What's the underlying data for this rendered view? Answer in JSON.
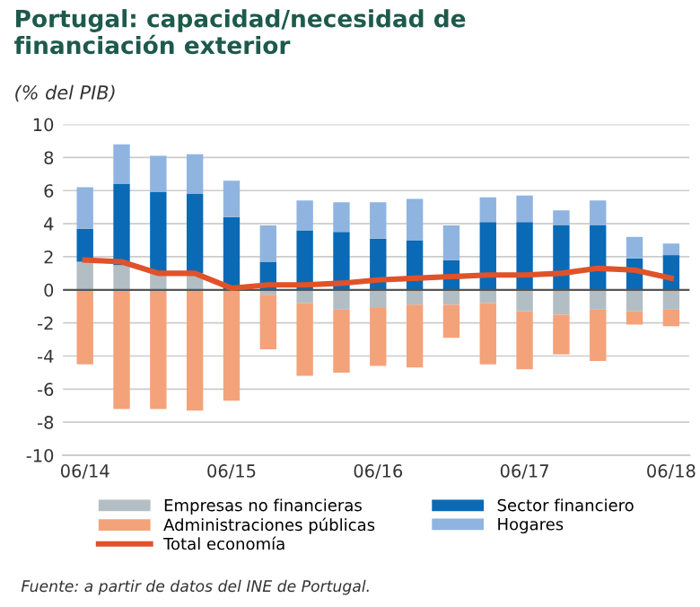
{
  "chart_data": {
    "type": "bar",
    "stacked": true,
    "title": "Portugal: capacidad/necesidad de\nfinanciación exterior",
    "ylabel": "(% del PIB)",
    "categories": [
      "06/14",
      null,
      null,
      null,
      "06/15",
      null,
      null,
      null,
      "06/16",
      null,
      null,
      null,
      "06/17",
      null,
      null,
      null,
      "06/18"
    ],
    "series": [
      {
        "name": "Empresas no financieras",
        "color": "#b3bec4",
        "values": [
          1.7,
          1.5,
          1.0,
          1.0,
          null,
          -0.3,
          -0.8,
          -1.2,
          -1.1,
          -0.9,
          -0.9,
          -0.8,
          -1.3,
          -1.5,
          -1.2,
          -1.3,
          -1.2
        ]
      },
      {
        "name": "Administraciones públicas",
        "color": "#f4a27a",
        "values": [
          -4.5,
          -7.2,
          -7.2,
          -7.3,
          -6.7,
          -3.3,
          -4.4,
          -3.8,
          -3.5,
          -3.8,
          -2.0,
          -3.7,
          -3.5,
          -2.4,
          -3.1,
          -0.8,
          -1.0
        ]
      },
      {
        "name": "Total economía",
        "type": "line",
        "color": "#e0522a",
        "values": [
          1.8,
          1.7,
          1.0,
          1.0,
          0.1,
          0.3,
          0.3,
          0.4,
          0.6,
          0.7,
          0.8,
          0.9,
          0.9,
          1.0,
          1.3,
          1.2,
          0.7
        ]
      },
      {
        "name": "Sector financiero",
        "color": "#0a6ab6",
        "values": [
          2.0,
          4.9,
          4.9,
          4.8,
          4.4,
          1.7,
          3.6,
          3.5,
          3.1,
          3.0,
          1.8,
          4.1,
          4.1,
          3.9,
          3.9,
          1.9,
          2.1
        ]
      },
      {
        "name": "Hogares",
        "color": "#8fb4e0",
        "values": [
          2.5,
          2.4,
          2.2,
          2.4,
          2.2,
          2.2,
          1.8,
          1.8,
          2.2,
          2.5,
          2.1,
          1.5,
          1.6,
          0.9,
          1.5,
          1.3,
          0.7
        ]
      }
    ],
    "ylim": [
      -10,
      10
    ],
    "yticks": [
      -10,
      -8,
      -6,
      -4,
      -2,
      0,
      2,
      4,
      6,
      8,
      10
    ],
    "grid": "y",
    "legend": "bottom",
    "marker": "none",
    "line_style": "solid",
    "annotations": [
      "Fuente: a partir de datos del INE de Portugal."
    ]
  }
}
